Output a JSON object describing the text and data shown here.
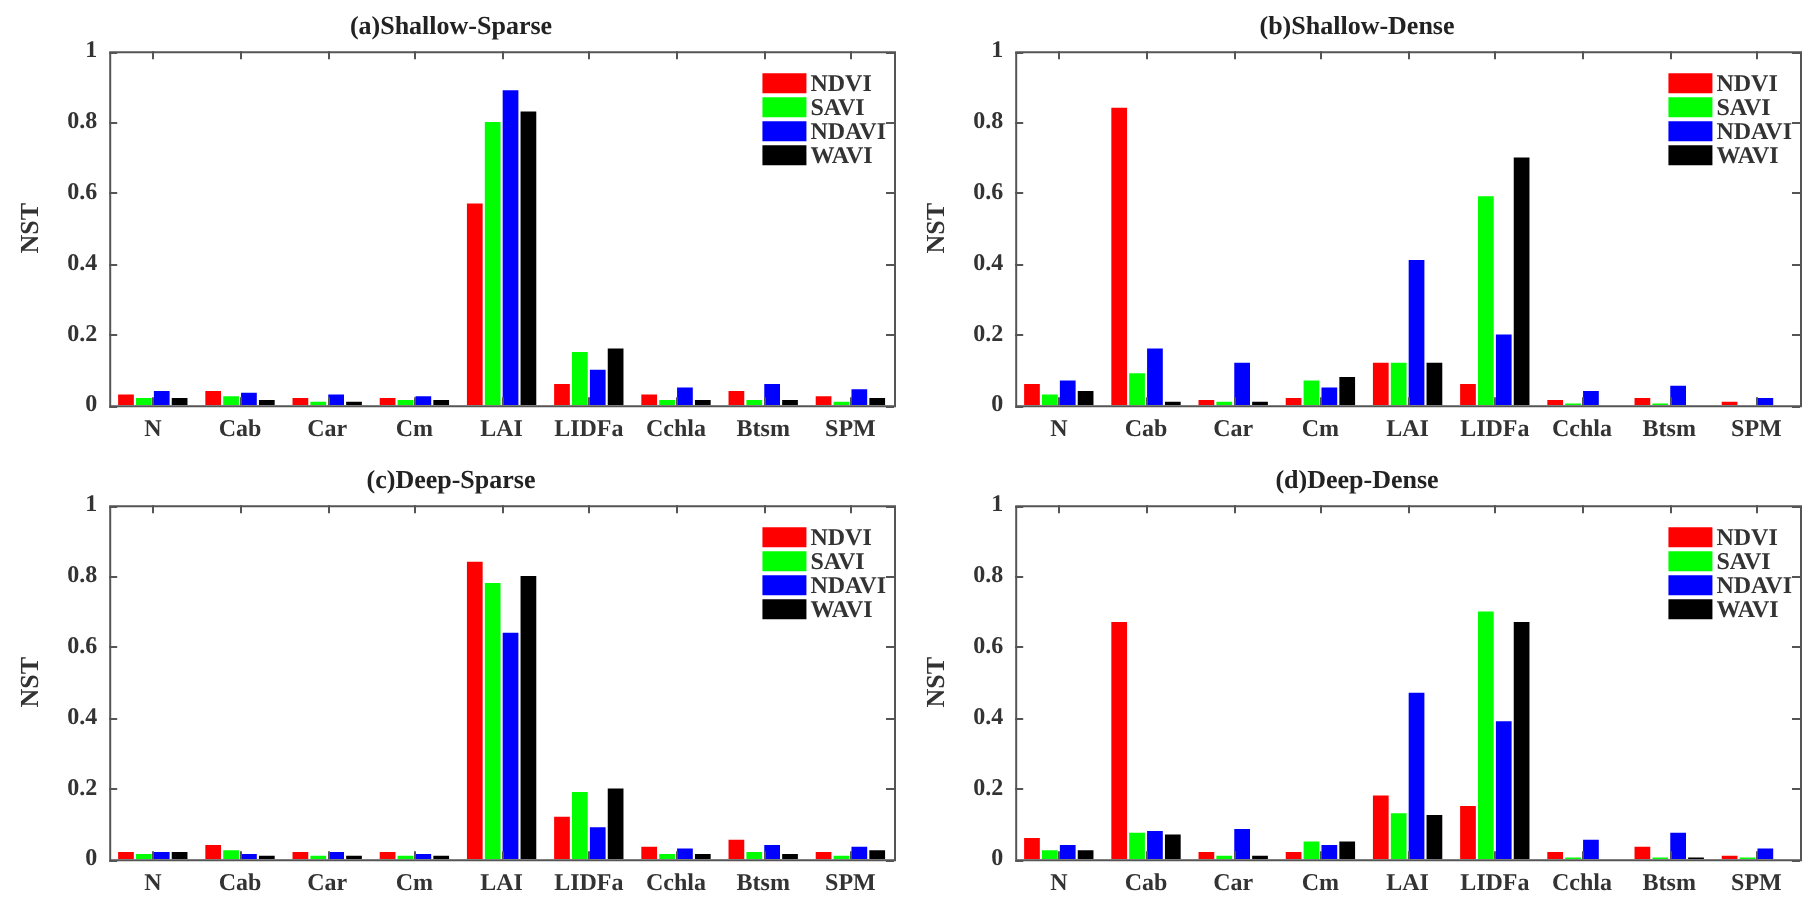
{
  "chart_data": [
    {
      "type": "bar",
      "title": "(a)Shallow-Sparse",
      "ylabel": "NST",
      "categories": [
        "N",
        "Cab",
        "Car",
        "Cm",
        "LAI",
        "LIDFa",
        "Cchla",
        "Btsm",
        "SPM"
      ],
      "ylim": [
        0,
        1
      ],
      "yticks": [
        0,
        0.2,
        0.4,
        0.6,
        0.8,
        1
      ],
      "grid": false,
      "legend": "top right",
      "series": [
        {
          "name": "NDVI",
          "color": "#ff0000",
          "values": [
            0.03,
            0.04,
            0.02,
            0.02,
            0.57,
            0.06,
            0.03,
            0.04,
            0.025
          ]
        },
        {
          "name": "SAVI",
          "color": "#00ff00",
          "values": [
            0.02,
            0.025,
            0.01,
            0.015,
            0.8,
            0.15,
            0.015,
            0.015,
            0.01
          ]
        },
        {
          "name": "NDAVI",
          "color": "#0000ff",
          "values": [
            0.04,
            0.035,
            0.03,
            0.025,
            0.89,
            0.1,
            0.05,
            0.06,
            0.045
          ]
        },
        {
          "name": "WAVI",
          "color": "#000000",
          "values": [
            0.02,
            0.015,
            0.01,
            0.015,
            0.83,
            0.16,
            0.015,
            0.015,
            0.02
          ]
        }
      ]
    },
    {
      "type": "bar",
      "title": "(b)Shallow-Dense",
      "ylabel": "NST",
      "categories": [
        "N",
        "Cab",
        "Car",
        "Cm",
        "LAI",
        "LIDFa",
        "Cchla",
        "Btsm",
        "SPM"
      ],
      "ylim": [
        0,
        1
      ],
      "yticks": [
        0,
        0.2,
        0.4,
        0.6,
        0.8,
        1
      ],
      "grid": false,
      "legend": "top right",
      "series": [
        {
          "name": "NDVI",
          "color": "#ff0000",
          "values": [
            0.06,
            0.84,
            0.015,
            0.02,
            0.12,
            0.06,
            0.015,
            0.02,
            0.01
          ]
        },
        {
          "name": "SAVI",
          "color": "#00ff00",
          "values": [
            0.03,
            0.09,
            0.01,
            0.07,
            0.12,
            0.59,
            0.005,
            0.005,
            0
          ]
        },
        {
          "name": "NDAVI",
          "color": "#0000ff",
          "values": [
            0.07,
            0.16,
            0.12,
            0.05,
            0.41,
            0.2,
            0.04,
            0.055,
            0.02
          ]
        },
        {
          "name": "WAVI",
          "color": "#000000",
          "values": [
            0.04,
            0.01,
            0.01,
            0.08,
            0.12,
            0.7,
            0,
            0,
            0
          ]
        }
      ]
    },
    {
      "type": "bar",
      "title": "(c)Deep-Sparse",
      "ylabel": "NST",
      "categories": [
        "N",
        "Cab",
        "Car",
        "Cm",
        "LAI",
        "LIDFa",
        "Cchla",
        "Btsm",
        "SPM"
      ],
      "ylim": [
        0,
        1
      ],
      "yticks": [
        0,
        0.2,
        0.4,
        0.6,
        0.8,
        1
      ],
      "grid": false,
      "legend": "top right",
      "series": [
        {
          "name": "NDVI",
          "color": "#ff0000",
          "values": [
            0.02,
            0.04,
            0.02,
            0.02,
            0.84,
            0.12,
            0.035,
            0.055,
            0.02
          ]
        },
        {
          "name": "SAVI",
          "color": "#00ff00",
          "values": [
            0.015,
            0.025,
            0.01,
            0.01,
            0.78,
            0.19,
            0.015,
            0.02,
            0.01
          ]
        },
        {
          "name": "NDAVI",
          "color": "#0000ff",
          "values": [
            0.02,
            0.015,
            0.02,
            0.015,
            0.64,
            0.09,
            0.03,
            0.04,
            0.035
          ]
        },
        {
          "name": "WAVI",
          "color": "#000000",
          "values": [
            0.02,
            0.01,
            0.01,
            0.01,
            0.8,
            0.2,
            0.015,
            0.015,
            0.025
          ]
        }
      ]
    },
    {
      "type": "bar",
      "title": "(d)Deep-Dense",
      "ylabel": "NST",
      "categories": [
        "N",
        "Cab",
        "Car",
        "Cm",
        "LAI",
        "LIDFa",
        "Cchla",
        "Btsm",
        "SPM"
      ],
      "ylim": [
        0,
        1
      ],
      "yticks": [
        0,
        0.2,
        0.4,
        0.6,
        0.8,
        1
      ],
      "grid": false,
      "legend": "top right",
      "series": [
        {
          "name": "NDVI",
          "color": "#ff0000",
          "values": [
            0.06,
            0.67,
            0.02,
            0.02,
            0.18,
            0.15,
            0.02,
            0.035,
            0.01
          ]
        },
        {
          "name": "SAVI",
          "color": "#00ff00",
          "values": [
            0.025,
            0.075,
            0.01,
            0.05,
            0.13,
            0.7,
            0.005,
            0.005,
            0.005
          ]
        },
        {
          "name": "NDAVI",
          "color": "#0000ff",
          "values": [
            0.04,
            0.08,
            0.085,
            0.04,
            0.47,
            0.39,
            0.055,
            0.075,
            0.03
          ]
        },
        {
          "name": "WAVI",
          "color": "#000000",
          "values": [
            0.025,
            0.07,
            0.01,
            0.05,
            0.125,
            0.67,
            0,
            0.005,
            0
          ]
        }
      ]
    }
  ]
}
